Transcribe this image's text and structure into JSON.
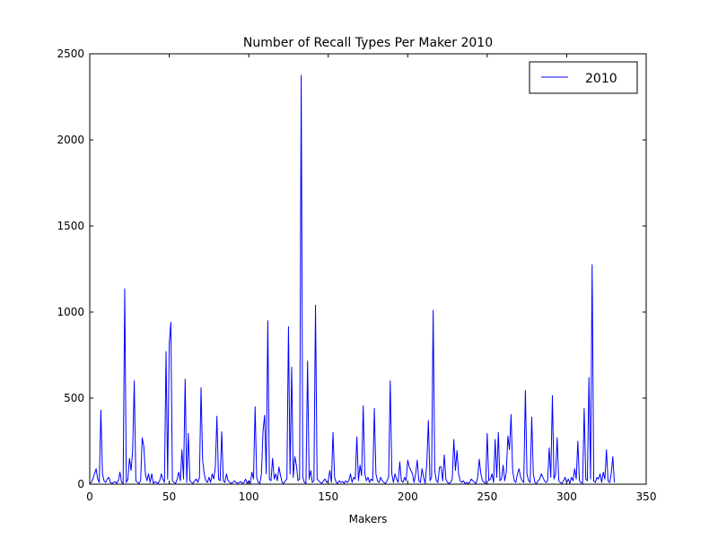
{
  "chart_data": {
    "type": "line",
    "title": "Number of Recall Types Per Maker 2010",
    "xlabel": "Makers",
    "ylabel": "",
    "xlim": [
      0,
      350
    ],
    "ylim": [
      0,
      2500
    ],
    "xticks": [
      0,
      50,
      100,
      150,
      200,
      250,
      300,
      350
    ],
    "yticks": [
      0,
      500,
      1000,
      1500,
      2000,
      2500
    ],
    "grid": false,
    "legend_position": "top-right",
    "series": [
      {
        "name": "2010",
        "color": "#0000ff",
        "points": [
          [
            0,
            5
          ],
          [
            1,
            10
          ],
          [
            2,
            30
          ],
          [
            3,
            60
          ],
          [
            4,
            90
          ],
          [
            5,
            30
          ],
          [
            6,
            10
          ],
          [
            7,
            430
          ],
          [
            8,
            60
          ],
          [
            9,
            20
          ],
          [
            10,
            10
          ],
          [
            11,
            30
          ],
          [
            12,
            40
          ],
          [
            13,
            10
          ],
          [
            14,
            5
          ],
          [
            15,
            10
          ],
          [
            16,
            15
          ],
          [
            17,
            5
          ],
          [
            18,
            20
          ],
          [
            19,
            70
          ],
          [
            20,
            10
          ],
          [
            21,
            5
          ],
          [
            22,
            1135
          ],
          [
            23,
            10
          ],
          [
            24,
            30
          ],
          [
            25,
            150
          ],
          [
            26,
            80
          ],
          [
            27,
            200
          ],
          [
            28,
            600
          ],
          [
            29,
            20
          ],
          [
            30,
            10
          ],
          [
            31,
            5
          ],
          [
            32,
            20
          ],
          [
            33,
            270
          ],
          [
            34,
            220
          ],
          [
            35,
            60
          ],
          [
            36,
            20
          ],
          [
            37,
            60
          ],
          [
            38,
            10
          ],
          [
            39,
            60
          ],
          [
            40,
            5
          ],
          [
            41,
            15
          ],
          [
            42,
            10
          ],
          [
            43,
            5
          ],
          [
            44,
            20
          ],
          [
            45,
            60
          ],
          [
            46,
            30
          ],
          [
            47,
            10
          ],
          [
            48,
            770
          ],
          [
            49,
            30
          ],
          [
            50,
            820
          ],
          [
            51,
            940
          ],
          [
            52,
            20
          ],
          [
            53,
            10
          ],
          [
            54,
            5
          ],
          [
            55,
            30
          ],
          [
            56,
            70
          ],
          [
            57,
            20
          ],
          [
            58,
            200
          ],
          [
            59,
            30
          ],
          [
            60,
            610
          ],
          [
            61,
            10
          ],
          [
            62,
            295
          ],
          [
            63,
            20
          ],
          [
            64,
            10
          ],
          [
            65,
            5
          ],
          [
            66,
            20
          ],
          [
            67,
            30
          ],
          [
            68,
            10
          ],
          [
            69,
            40
          ],
          [
            70,
            560
          ],
          [
            71,
            140
          ],
          [
            72,
            60
          ],
          [
            73,
            20
          ],
          [
            74,
            10
          ],
          [
            75,
            40
          ],
          [
            76,
            10
          ],
          [
            77,
            60
          ],
          [
            78,
            30
          ],
          [
            79,
            100
          ],
          [
            80,
            395
          ],
          [
            81,
            30
          ],
          [
            82,
            20
          ],
          [
            83,
            305
          ],
          [
            84,
            20
          ],
          [
            85,
            10
          ],
          [
            86,
            60
          ],
          [
            87,
            20
          ],
          [
            88,
            10
          ],
          [
            89,
            5
          ],
          [
            90,
            10
          ],
          [
            91,
            20
          ],
          [
            92,
            10
          ],
          [
            93,
            5
          ],
          [
            94,
            10
          ],
          [
            95,
            15
          ],
          [
            96,
            5
          ],
          [
            97,
            10
          ],
          [
            98,
            30
          ],
          [
            99,
            5
          ],
          [
            100,
            20
          ],
          [
            101,
            5
          ],
          [
            102,
            70
          ],
          [
            103,
            30
          ],
          [
            104,
            450
          ],
          [
            105,
            40
          ],
          [
            106,
            10
          ],
          [
            107,
            5
          ],
          [
            108,
            60
          ],
          [
            109,
            310
          ],
          [
            110,
            400
          ],
          [
            111,
            60
          ],
          [
            112,
            950
          ],
          [
            113,
            30
          ],
          [
            114,
            20
          ],
          [
            115,
            150
          ],
          [
            116,
            30
          ],
          [
            117,
            60
          ],
          [
            118,
            20
          ],
          [
            119,
            100
          ],
          [
            120,
            50
          ],
          [
            121,
            10
          ],
          [
            122,
            5
          ],
          [
            123,
            20
          ],
          [
            124,
            30
          ],
          [
            125,
            915
          ],
          [
            126,
            60
          ],
          [
            127,
            680
          ],
          [
            128,
            40
          ],
          [
            129,
            160
          ],
          [
            130,
            110
          ],
          [
            131,
            20
          ],
          [
            132,
            30
          ],
          [
            133,
            2375
          ],
          [
            134,
            40
          ],
          [
            135,
            10
          ],
          [
            136,
            5
          ],
          [
            137,
            715
          ],
          [
            138,
            30
          ],
          [
            139,
            80
          ],
          [
            140,
            10
          ],
          [
            141,
            20
          ],
          [
            142,
            1040
          ],
          [
            143,
            30
          ],
          [
            144,
            20
          ],
          [
            145,
            10
          ],
          [
            146,
            5
          ],
          [
            147,
            20
          ],
          [
            148,
            30
          ],
          [
            149,
            10
          ],
          [
            150,
            20
          ],
          [
            151,
            80
          ],
          [
            152,
            10
          ],
          [
            153,
            300
          ],
          [
            154,
            40
          ],
          [
            155,
            10
          ],
          [
            156,
            5
          ],
          [
            157,
            20
          ],
          [
            158,
            10
          ],
          [
            159,
            15
          ],
          [
            160,
            5
          ],
          [
            161,
            20
          ],
          [
            162,
            10
          ],
          [
            163,
            20
          ],
          [
            164,
            60
          ],
          [
            165,
            10
          ],
          [
            166,
            40
          ],
          [
            167,
            30
          ],
          [
            168,
            275
          ],
          [
            169,
            20
          ],
          [
            170,
            110
          ],
          [
            171,
            50
          ],
          [
            172,
            455
          ],
          [
            173,
            60
          ],
          [
            174,
            20
          ],
          [
            175,
            40
          ],
          [
            176,
            10
          ],
          [
            177,
            30
          ],
          [
            178,
            20
          ],
          [
            179,
            440
          ],
          [
            180,
            60
          ],
          [
            181,
            20
          ],
          [
            182,
            10
          ],
          [
            183,
            40
          ],
          [
            184,
            20
          ],
          [
            185,
            10
          ],
          [
            186,
            5
          ],
          [
            187,
            20
          ],
          [
            188,
            40
          ],
          [
            189,
            600
          ],
          [
            190,
            60
          ],
          [
            191,
            10
          ],
          [
            192,
            60
          ],
          [
            193,
            30
          ],
          [
            194,
            10
          ],
          [
            195,
            130
          ],
          [
            196,
            20
          ],
          [
            197,
            10
          ],
          [
            198,
            40
          ],
          [
            199,
            20
          ],
          [
            200,
            140
          ],
          [
            201,
            100
          ],
          [
            202,
            80
          ],
          [
            203,
            60
          ],
          [
            204,
            10
          ],
          [
            205,
            60
          ],
          [
            206,
            140
          ],
          [
            207,
            20
          ],
          [
            208,
            10
          ],
          [
            209,
            90
          ],
          [
            210,
            40
          ],
          [
            211,
            5
          ],
          [
            212,
            120
          ],
          [
            213,
            370
          ],
          [
            214,
            20
          ],
          [
            215,
            40
          ],
          [
            216,
            1010
          ],
          [
            217,
            80
          ],
          [
            218,
            20
          ],
          [
            219,
            10
          ],
          [
            220,
            100
          ],
          [
            221,
            100
          ],
          [
            222,
            20
          ],
          [
            223,
            170
          ],
          [
            224,
            30
          ],
          [
            225,
            10
          ],
          [
            226,
            5
          ],
          [
            227,
            10
          ],
          [
            228,
            30
          ],
          [
            229,
            260
          ],
          [
            230,
            80
          ],
          [
            231,
            195
          ],
          [
            232,
            60
          ],
          [
            233,
            20
          ],
          [
            234,
            10
          ],
          [
            235,
            20
          ],
          [
            236,
            5
          ],
          [
            237,
            10
          ],
          [
            238,
            5
          ],
          [
            239,
            10
          ],
          [
            240,
            30
          ],
          [
            241,
            20
          ],
          [
            242,
            10
          ],
          [
            243,
            5
          ],
          [
            244,
            40
          ],
          [
            245,
            145
          ],
          [
            246,
            60
          ],
          [
            247,
            20
          ],
          [
            248,
            10
          ],
          [
            249,
            5
          ],
          [
            250,
            295
          ],
          [
            251,
            20
          ],
          [
            252,
            30
          ],
          [
            253,
            60
          ],
          [
            254,
            10
          ],
          [
            255,
            260
          ],
          [
            256,
            40
          ],
          [
            257,
            300
          ],
          [
            258,
            20
          ],
          [
            259,
            30
          ],
          [
            260,
            110
          ],
          [
            261,
            20
          ],
          [
            262,
            70
          ],
          [
            263,
            280
          ],
          [
            264,
            200
          ],
          [
            265,
            405
          ],
          [
            266,
            80
          ],
          [
            267,
            20
          ],
          [
            268,
            10
          ],
          [
            269,
            60
          ],
          [
            270,
            90
          ],
          [
            271,
            40
          ],
          [
            272,
            20
          ],
          [
            273,
            10
          ],
          [
            274,
            545
          ],
          [
            275,
            60
          ],
          [
            276,
            20
          ],
          [
            277,
            10
          ],
          [
            278,
            390
          ],
          [
            279,
            60
          ],
          [
            280,
            10
          ],
          [
            281,
            5
          ],
          [
            282,
            20
          ],
          [
            283,
            30
          ],
          [
            284,
            60
          ],
          [
            285,
            40
          ],
          [
            286,
            20
          ],
          [
            287,
            10
          ],
          [
            288,
            20
          ],
          [
            289,
            210
          ],
          [
            290,
            40
          ],
          [
            291,
            515
          ],
          [
            292,
            30
          ],
          [
            293,
            60
          ],
          [
            294,
            270
          ],
          [
            295,
            20
          ],
          [
            296,
            10
          ],
          [
            297,
            5
          ],
          [
            298,
            20
          ],
          [
            299,
            40
          ],
          [
            300,
            10
          ],
          [
            301,
            30
          ],
          [
            302,
            5
          ],
          [
            303,
            40
          ],
          [
            304,
            20
          ],
          [
            305,
            90
          ],
          [
            306,
            30
          ],
          [
            307,
            250
          ],
          [
            308,
            20
          ],
          [
            309,
            10
          ],
          [
            310,
            5
          ],
          [
            311,
            440
          ],
          [
            312,
            30
          ],
          [
            313,
            20
          ],
          [
            314,
            620
          ],
          [
            315,
            30
          ],
          [
            316,
            1275
          ],
          [
            317,
            20
          ],
          [
            318,
            10
          ],
          [
            319,
            40
          ],
          [
            320,
            30
          ],
          [
            321,
            60
          ],
          [
            322,
            10
          ],
          [
            323,
            70
          ],
          [
            324,
            30
          ],
          [
            325,
            200
          ],
          [
            326,
            20
          ],
          [
            327,
            10
          ],
          [
            328,
            60
          ],
          [
            329,
            160
          ],
          [
            330,
            10
          ]
        ]
      }
    ]
  }
}
